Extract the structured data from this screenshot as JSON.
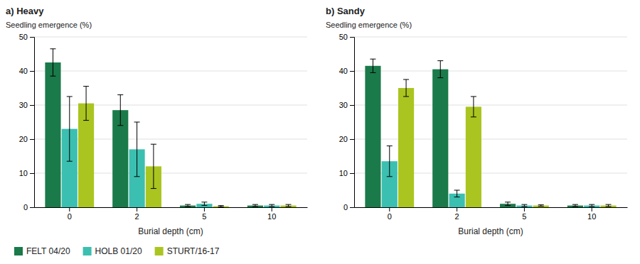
{
  "chart_data": [
    {
      "type": "bar",
      "title": "a) Heavy",
      "xlabel": "Burial depth (cm)",
      "ylabel": "Seedling emergence (%)",
      "categories": [
        "0",
        "2",
        "5",
        "10"
      ],
      "series": [
        {
          "name": "FELT 04/20",
          "color": "#1a7a4a",
          "values": [
            42.5,
            28.5,
            0.5,
            0.5
          ],
          "errors": [
            4.0,
            4.5,
            0.3,
            0.3
          ]
        },
        {
          "name": "HOLB 01/20",
          "color": "#3bbfb0",
          "values": [
            23.0,
            17.0,
            1.0,
            0.5
          ],
          "errors": [
            9.5,
            8.0,
            0.5,
            0.3
          ]
        },
        {
          "name": "STURT/16-17",
          "color": "#aac520",
          "values": [
            30.5,
            12.0,
            0.3,
            0.5
          ],
          "errors": [
            5.0,
            6.5,
            0.2,
            0.3
          ]
        }
      ],
      "ylim": [
        0,
        50
      ],
      "yticks": [
        0,
        10,
        20,
        30,
        40,
        50
      ],
      "grid": true,
      "legend": "lower left"
    },
    {
      "type": "bar",
      "title": "b) Sandy",
      "xlabel": "Burial depth (cm)",
      "ylabel": "Seedling emergence (%)",
      "categories": [
        "0",
        "2",
        "5",
        "10"
      ],
      "series": [
        {
          "name": "FELT 04/20",
          "color": "#1a7a4a",
          "values": [
            41.5,
            40.5,
            1.0,
            0.5
          ],
          "errors": [
            2.0,
            2.5,
            0.5,
            0.3
          ]
        },
        {
          "name": "HOLB 01/20",
          "color": "#3bbfb0",
          "values": [
            13.5,
            4.0,
            0.5,
            0.5
          ],
          "errors": [
            4.5,
            1.0,
            0.3,
            0.3
          ]
        },
        {
          "name": "STURT/16-17",
          "color": "#aac520",
          "values": [
            35.0,
            29.5,
            0.5,
            0.5
          ],
          "errors": [
            2.5,
            3.0,
            0.2,
            0.3
          ]
        }
      ],
      "ylim": [
        0,
        50
      ],
      "yticks": [
        0,
        10,
        20,
        30,
        40,
        50
      ],
      "grid": true
    }
  ]
}
